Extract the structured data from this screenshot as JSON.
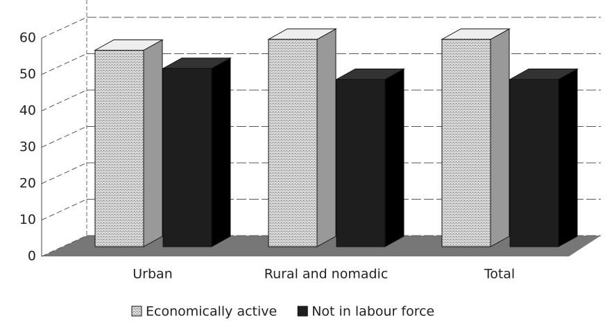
{
  "chart_data": {
    "type": "bar3d",
    "categories": [
      "Urban",
      "Rural and nomadic",
      "Total"
    ],
    "series": [
      {
        "name": "Economically active",
        "color": "#c8c8c8",
        "values": [
          54,
          57,
          57
        ]
      },
      {
        "name": "Not in labour force",
        "color": "#1e1e1e",
        "values": [
          49,
          46,
          46
        ]
      }
    ],
    "ylim": [
      0,
      60
    ],
    "yticks": [
      0,
      10,
      20,
      30,
      40,
      50,
      60
    ],
    "grid": true,
    "legend": "bottom"
  }
}
